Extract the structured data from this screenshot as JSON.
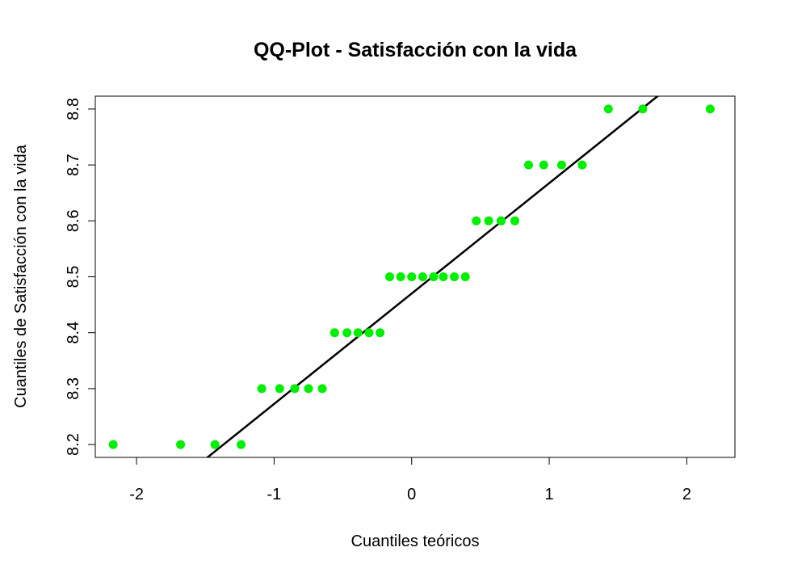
{
  "chart_data": {
    "type": "scatter",
    "title": "QQ-Plot - Satisfacción con la vida",
    "xlabel": "Cuantiles teóricos",
    "ylabel": "Cuantiles de Satisfacción con la vida",
    "xlim": [
      -2.3,
      2.35
    ],
    "ylim": [
      8.177,
      8.823
    ],
    "x_ticks": [
      -2,
      -1,
      0,
      1,
      2
    ],
    "x_tick_labels": [
      "-2",
      "-1",
      "0",
      "1",
      "2"
    ],
    "y_ticks": [
      8.2,
      8.3,
      8.4,
      8.5,
      8.6,
      8.7,
      8.8
    ],
    "y_tick_labels": [
      "8.2",
      "8.3",
      "8.4",
      "8.5",
      "8.6",
      "8.7",
      "8.8"
    ],
    "grid": false,
    "point_color": "#00ee00",
    "line_color": "#000000",
    "series": [
      {
        "type": "points",
        "x": [
          -2.17,
          -1.68,
          -1.43,
          -1.24,
          -1.09,
          -0.96,
          -0.85,
          -0.75,
          -0.65,
          -0.56,
          -0.47,
          -0.39,
          -0.31,
          -0.23,
          -0.16,
          -0.08,
          0.0,
          0.08,
          0.16,
          0.23,
          0.31,
          0.39,
          0.47,
          0.56,
          0.65,
          0.75,
          0.85,
          0.96,
          1.09,
          1.24,
          1.43,
          1.68,
          2.17
        ],
        "y": [
          8.2,
          8.2,
          8.2,
          8.2,
          8.3,
          8.3,
          8.3,
          8.3,
          8.3,
          8.4,
          8.4,
          8.4,
          8.4,
          8.4,
          8.5,
          8.5,
          8.5,
          8.5,
          8.5,
          8.5,
          8.5,
          8.5,
          8.6,
          8.6,
          8.6,
          8.6,
          8.7,
          8.7,
          8.7,
          8.7,
          8.8,
          8.8,
          8.8
        ]
      },
      {
        "type": "qqline",
        "x": [
          -2.3,
          2.35
        ],
        "y": [
          8.016,
          8.934
        ]
      }
    ]
  }
}
